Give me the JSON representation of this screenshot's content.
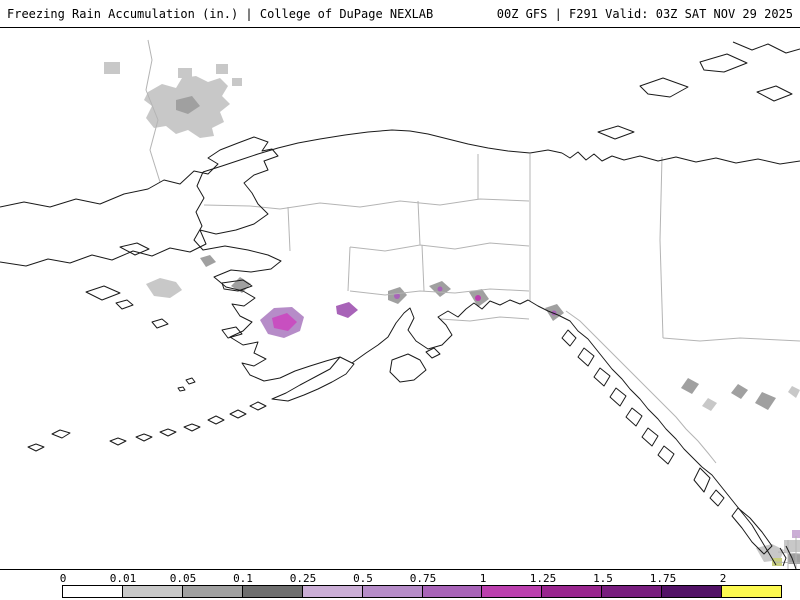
{
  "header": {
    "left": "Freezing Rain Accumulation (in.) | College of DuPage NEXLAB",
    "right": "00Z GFS | F291 Valid: 03Z SAT NOV 29 2025"
  },
  "colorbar": {
    "labels": [
      "0",
      "0.01",
      "0.05",
      "0.1",
      "0.25",
      "0.5",
      "0.75",
      "1",
      "1.25",
      "1.5",
      "1.75",
      "2"
    ],
    "segment_colors": [
      "#ffffff",
      "#c8c8c8",
      "#a0a0a0",
      "#6e6e6e",
      "#cbaed6",
      "#b68cc8",
      "#a863b8",
      "#bb3fae",
      "#99258e",
      "#781d7e",
      "#521266",
      "#fcf951"
    ]
  },
  "map": {
    "background_color": "#ffffff",
    "coastline_color": "#1a1a1a",
    "admin_border_color": "#b4b4b4"
  }
}
